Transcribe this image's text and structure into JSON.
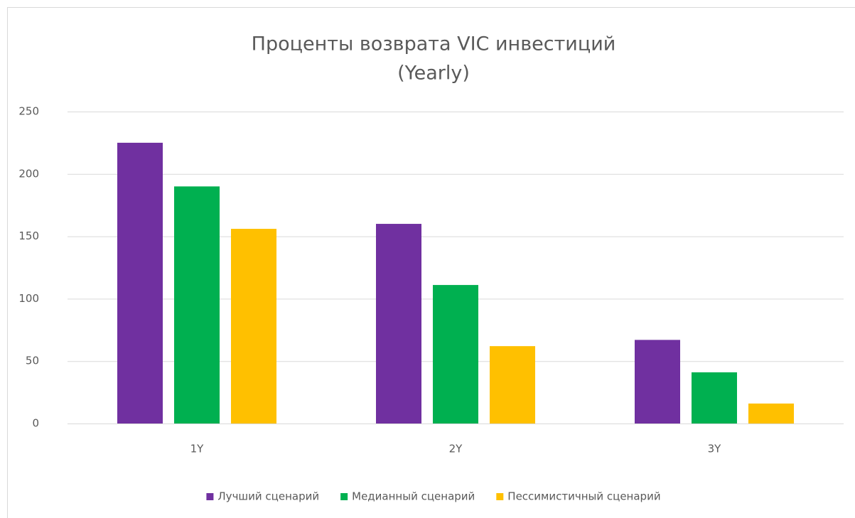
{
  "chart_data": {
    "type": "bar",
    "title": "Проценты возврата VIC инвестиций",
    "subtitle": "(Yearly)",
    "categories": [
      "1Y",
      "2Y",
      "3Y"
    ],
    "series": [
      {
        "name": "Лучший сценарий",
        "color": "#7030a0",
        "values": [
          225,
          160,
          67
        ]
      },
      {
        "name": "Медианный сценарий",
        "color": "#00b050",
        "values": [
          190,
          111,
          41
        ]
      },
      {
        "name": "Пессимистичный сценарий",
        "color": "#ffc000",
        "values": [
          156,
          62,
          16
        ]
      }
    ],
    "ylim": [
      0,
      250
    ],
    "yticks": [
      0,
      50,
      100,
      150,
      200,
      250
    ],
    "grid": true,
    "legend": "bottom"
  }
}
